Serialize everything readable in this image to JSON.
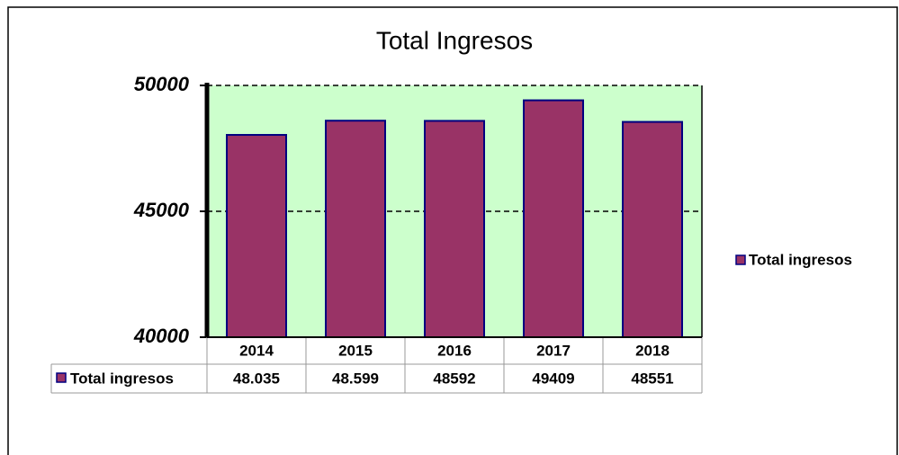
{
  "chart_data": {
    "type": "bar",
    "title": "Total Ingresos",
    "categories": [
      "2014",
      "2015",
      "2016",
      "2017",
      "2018"
    ],
    "series": [
      {
        "name": "Total ingresos",
        "color": "#993366",
        "values": [
          48035,
          48599,
          48592,
          49409,
          48551
        ],
        "value_labels": [
          "48.035",
          "48.599",
          "48592",
          "49409",
          "48551"
        ]
      }
    ],
    "ylim": [
      40000,
      50000
    ],
    "yticks": [
      40000,
      45000,
      50000
    ],
    "grid": true,
    "legend": "right"
  }
}
